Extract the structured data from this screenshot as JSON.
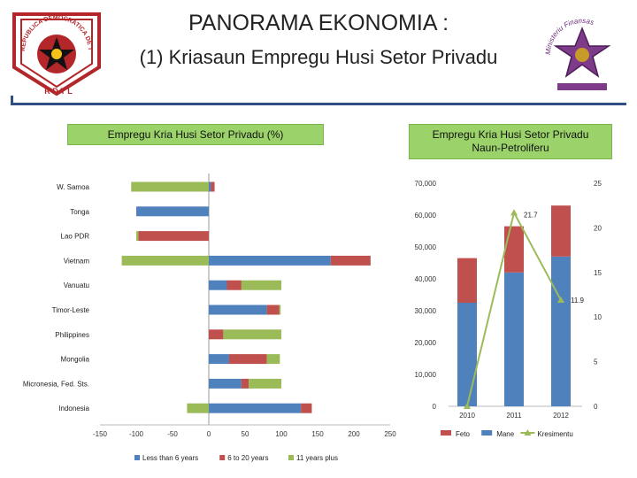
{
  "header": {
    "title": "PANORAMA EKONOMIA :",
    "subtitle": "(1) Kriasaun Empregu Husi  Setor Privadu"
  },
  "logos": {
    "left_ring_text": "REPUBLICA DEMOCRATICA DE TIMOR-LESTE",
    "left_bottom_text": "R D T L",
    "right_arc_text": "Ministeriu Finansas"
  },
  "chart_data": [
    {
      "type": "bar",
      "orientation": "horizontal",
      "stacked": true,
      "title": "Empregu Kria Husi Setor Privadu (%)",
      "categories": [
        "W. Samoa",
        "Tonga",
        "Lao PDR",
        "Vietnam",
        "Vanuatu",
        "Timor-Leste",
        "Philippines",
        "Mongolia",
        "Micronesia, Fed. Sts.",
        "Indonesia"
      ],
      "xlim": [
        -150,
        250
      ],
      "xticks": [
        -150,
        -100,
        -50,
        0,
        50,
        100,
        150,
        200,
        250
      ],
      "series": [
        {
          "name": "Less than 6 years",
          "color": "#4f81bd",
          "values": [
            3,
            -100,
            0,
            168,
            25,
            80,
            0,
            28,
            45,
            127
          ]
        },
        {
          "name": "6 to 20 years",
          "color": "#c0504d",
          "values": [
            5,
            0,
            -97,
            55,
            20,
            17,
            20,
            52,
            10,
            15
          ]
        },
        {
          "name": "11 years plus",
          "color": "#9bbb59",
          "values": [
            -107,
            0,
            -3,
            -120,
            55,
            2,
            80,
            18,
            45,
            -30
          ]
        }
      ]
    },
    {
      "type": "bar",
      "stacked": true,
      "title": "Empregu Kria Husi Setor Privadu Naun-Petroliferu",
      "categories": [
        "2010",
        "2011",
        "2012"
      ],
      "ylim": [
        0,
        70000
      ],
      "yticks": [
        "0",
        "10,000",
        "20,000",
        "30,000",
        "40,000",
        "50,000",
        "60,000",
        "70,000"
      ],
      "y2lim": [
        0,
        25
      ],
      "y2ticks": [
        "0",
        "5",
        "10",
        "15",
        "20",
        "25"
      ],
      "series": [
        {
          "name": "Mane",
          "color": "#4f81bd",
          "values": [
            32500,
            42000,
            47000
          ]
        },
        {
          "name": "Feto",
          "color": "#c0504d",
          "values": [
            14000,
            14500,
            16000
          ]
        },
        {
          "name": "Kresimentu",
          "type": "line",
          "axis": "secondary",
          "color": "#9bbb59",
          "values": [
            0,
            21.7,
            11.9
          ]
        }
      ],
      "data_labels": [
        "21.7",
        "11.9"
      ],
      "legend": [
        "Feto",
        "Mane",
        "Kresimentu"
      ]
    }
  ]
}
